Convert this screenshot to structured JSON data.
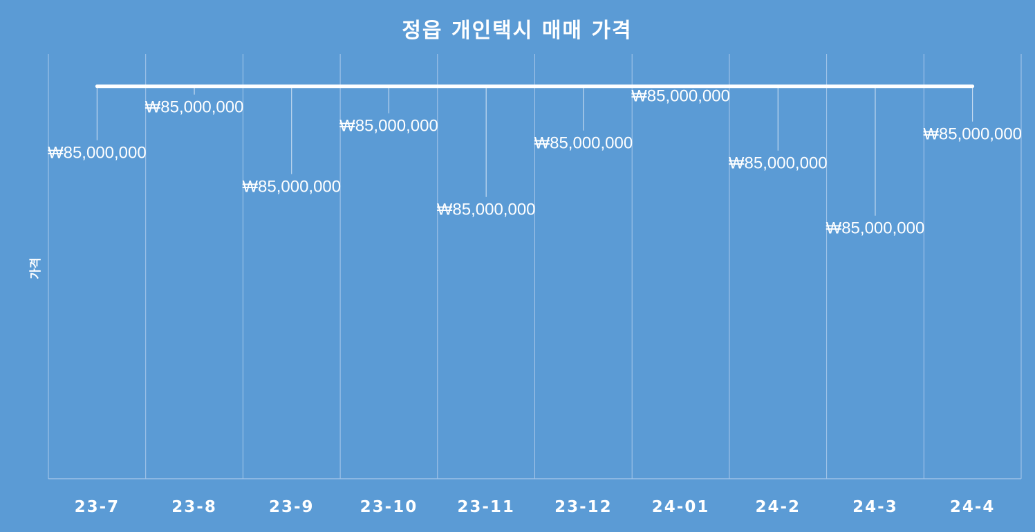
{
  "chart_data": {
    "type": "line",
    "title": "정읍 개인택시 매매 가격",
    "xlabel": "",
    "ylabel": "가격",
    "categories": [
      "23-7",
      "23-8",
      "23-9",
      "23-10",
      "23-11",
      "23-12",
      "24-01",
      "24-2",
      "24-3",
      "24-4"
    ],
    "series": [
      {
        "values": [
          85000000,
          85000000,
          85000000,
          85000000,
          85000000,
          85000000,
          85000000,
          85000000,
          85000000,
          85000000
        ],
        "labels": [
          "₩85,000,000",
          "₩85,000,000",
          "₩85,000,000",
          "₩85,000,000",
          "₩85,000,000",
          "₩85,000,000",
          "₩85,000,000",
          "₩85,000,000",
          "₩85,000,000",
          "₩85,000,000"
        ]
      }
    ],
    "ylim": [
      0,
      92000000
    ],
    "grid": "vertical",
    "legend": "none",
    "colors": {
      "background": "#5b9bd5",
      "line": "#ffffff",
      "text": "#ffffff",
      "grid": "#a9c8ea"
    }
  }
}
